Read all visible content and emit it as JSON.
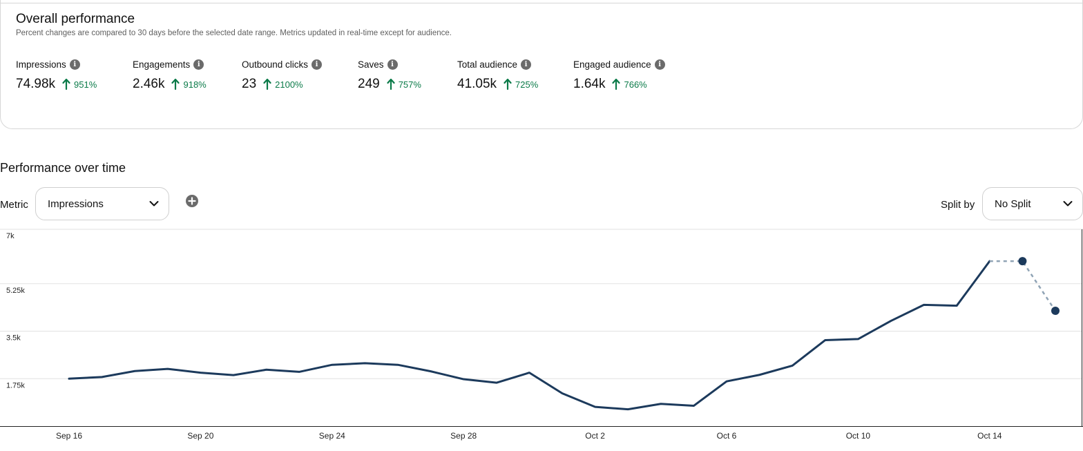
{
  "overall": {
    "title": "Overall performance",
    "subtitle": "Percent changes are compared to 30 days before the selected date range. Metrics updated in real-time except for audience.",
    "metrics": [
      {
        "label": "Impressions",
        "value": "74.98k",
        "change": "951%"
      },
      {
        "label": "Engagements",
        "value": "2.46k",
        "change": "918%"
      },
      {
        "label": "Outbound clicks",
        "value": "23",
        "change": "2100%"
      },
      {
        "label": "Saves",
        "value": "249",
        "change": "757%"
      },
      {
        "label": "Total audience",
        "value": "41.05k",
        "change": "725%"
      },
      {
        "label": "Engaged audience",
        "value": "1.64k",
        "change": "766%"
      }
    ],
    "info_icon": "info-icon",
    "trend_icon": "arrow-up-icon",
    "trend_color": "#0a7a48"
  },
  "performance": {
    "title": "Performance over time",
    "metric_label": "Metric",
    "metric_selected": "Impressions",
    "add_icon": "plus-circle-icon",
    "split_label": "Split by",
    "split_selected": "No Split"
  },
  "chart_data": {
    "type": "line",
    "x": [
      "Sep 16",
      "Sep 17",
      "Sep 18",
      "Sep 19",
      "Sep 20",
      "Sep 21",
      "Sep 22",
      "Sep 23",
      "Sep 24",
      "Sep 25",
      "Sep 26",
      "Sep 27",
      "Sep 28",
      "Sep 29",
      "Sep 30",
      "Oct 1",
      "Oct 2",
      "Oct 3",
      "Oct 4",
      "Oct 5",
      "Oct 6",
      "Oct 7",
      "Oct 8",
      "Oct 9",
      "Oct 10",
      "Oct 11",
      "Oct 12",
      "Oct 13",
      "Oct 14",
      "Oct 15",
      "Oct 16"
    ],
    "xticks": [
      "Sep 16",
      "Sep 20",
      "Sep 24",
      "Sep 28",
      "Oct 2",
      "Oct 6",
      "Oct 10",
      "Oct 14"
    ],
    "yticks": [
      "7k",
      "5.25k",
      "3.5k",
      "1.75k"
    ],
    "ylim": [
      0,
      7000
    ],
    "series": [
      {
        "values": [
          1750,
          1810,
          2030,
          2110,
          1970,
          1880,
          2080,
          2000,
          2260,
          2320,
          2260,
          2020,
          1730,
          1600,
          1970,
          1210,
          710,
          620,
          820,
          750,
          1650,
          1890,
          2230,
          3170,
          3210,
          3880,
          4470,
          4440,
          6080,
          6080,
          4250
        ],
        "line_color": "#1c3a5c",
        "dashed_from_index": 28,
        "marked_indices": [
          29,
          30
        ]
      }
    ],
    "grid": true,
    "legend": "none"
  }
}
